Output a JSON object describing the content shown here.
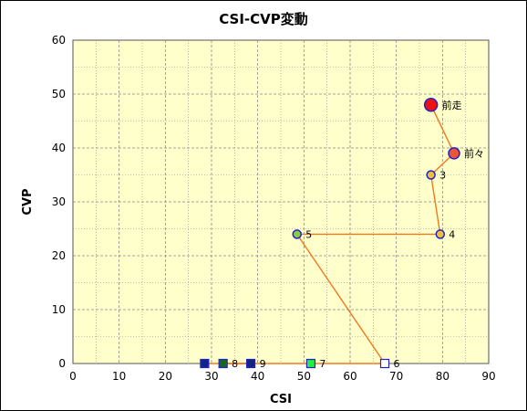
{
  "chart_data": {
    "type": "scatter",
    "title": "CSI-CVP変動",
    "xlabel": "CSI",
    "ylabel": "CVP",
    "xlim": [
      0,
      90
    ],
    "ylim": [
      0,
      60
    ],
    "xticks": [
      0,
      10,
      20,
      30,
      40,
      50,
      60,
      70,
      80,
      90
    ],
    "yticks": [
      0,
      10,
      20,
      30,
      40,
      50,
      60
    ],
    "grid": true,
    "plot_background": "#ffffcc",
    "grid_color": "#888888",
    "line_color": "#f07820",
    "points": [
      {
        "label": "前走",
        "x": 77.5,
        "y": 48,
        "marker": "circle",
        "fill": "#ee1111",
        "stroke": "#2222cc",
        "size": "large"
      },
      {
        "label": "前々",
        "x": 82.5,
        "y": 39,
        "marker": "circle",
        "fill": "#ee5533",
        "stroke": "#2222cc",
        "size": "medium"
      },
      {
        "label": "3",
        "x": 77.5,
        "y": 35,
        "marker": "circle",
        "fill": "#f0c030",
        "stroke": "#2222cc",
        "size": "small"
      },
      {
        "label": "4",
        "x": 79.5,
        "y": 24,
        "marker": "circle",
        "fill": "#f0c030",
        "stroke": "#2222cc",
        "size": "small"
      },
      {
        "label": "5",
        "x": 48.5,
        "y": 24,
        "marker": "circle",
        "fill": "#88cc44",
        "stroke": "#2222cc",
        "size": "small"
      },
      {
        "label": "6",
        "x": 67.5,
        "y": 0,
        "marker": "square",
        "fill": "#ffffff",
        "stroke": "#2222cc",
        "size": "small"
      },
      {
        "label": "7",
        "x": 51.5,
        "y": 0,
        "marker": "square",
        "fill": "#22ee44",
        "stroke": "#2222cc",
        "size": "small"
      },
      {
        "label": "8",
        "x": 32.5,
        "y": 0,
        "marker": "square",
        "fill": "#116622",
        "stroke": "#2222cc",
        "size": "small"
      },
      {
        "label": "9",
        "x": 38.5,
        "y": 0,
        "marker": "square",
        "fill": "#112288",
        "stroke": "#2222cc",
        "size": "small"
      },
      {
        "label": "",
        "x": 28.5,
        "y": 0,
        "marker": "square",
        "fill": "#112288",
        "stroke": "#2222cc",
        "size": "small"
      }
    ]
  }
}
